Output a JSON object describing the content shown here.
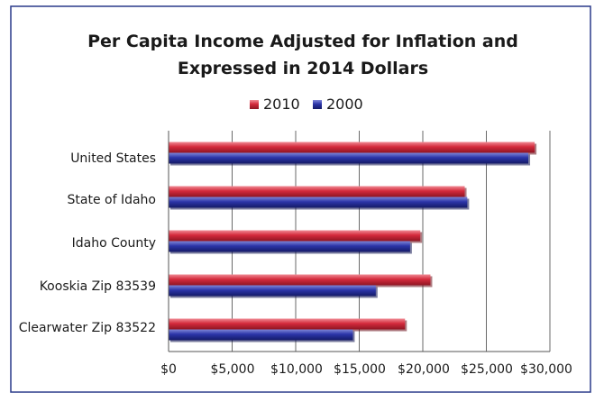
{
  "chart_data": {
    "type": "bar",
    "orientation": "horizontal",
    "title": "Per Capita Income Adjusted for Inflation and Expressed in 2014 Dollars",
    "title_lines": [
      "Per Capita Income Adjusted for Inflation and",
      "Expressed in 2014 Dollars"
    ],
    "categories": [
      "United States",
      "State of Idaho",
      "Idaho County",
      "Kooskia Zip 83539",
      "Clearwater Zip 83522"
    ],
    "series": [
      {
        "name": "2010",
        "color": "#d42a3c",
        "values": [
          28800,
          23300,
          19800,
          20600,
          18600
        ]
      },
      {
        "name": "2000",
        "color": "#2b34a8",
        "values": [
          28300,
          23500,
          19000,
          16300,
          14500
        ]
      }
    ],
    "xlim": [
      0,
      30000
    ],
    "ticks": [
      0,
      5000,
      10000,
      15000,
      20000,
      25000,
      30000
    ],
    "tick_labels": [
      "$0",
      "$5,000",
      "$10,000",
      "$15,000",
      "$20,000",
      "$25,000",
      "$30,000"
    ],
    "grid": true,
    "legend_position": "top"
  }
}
